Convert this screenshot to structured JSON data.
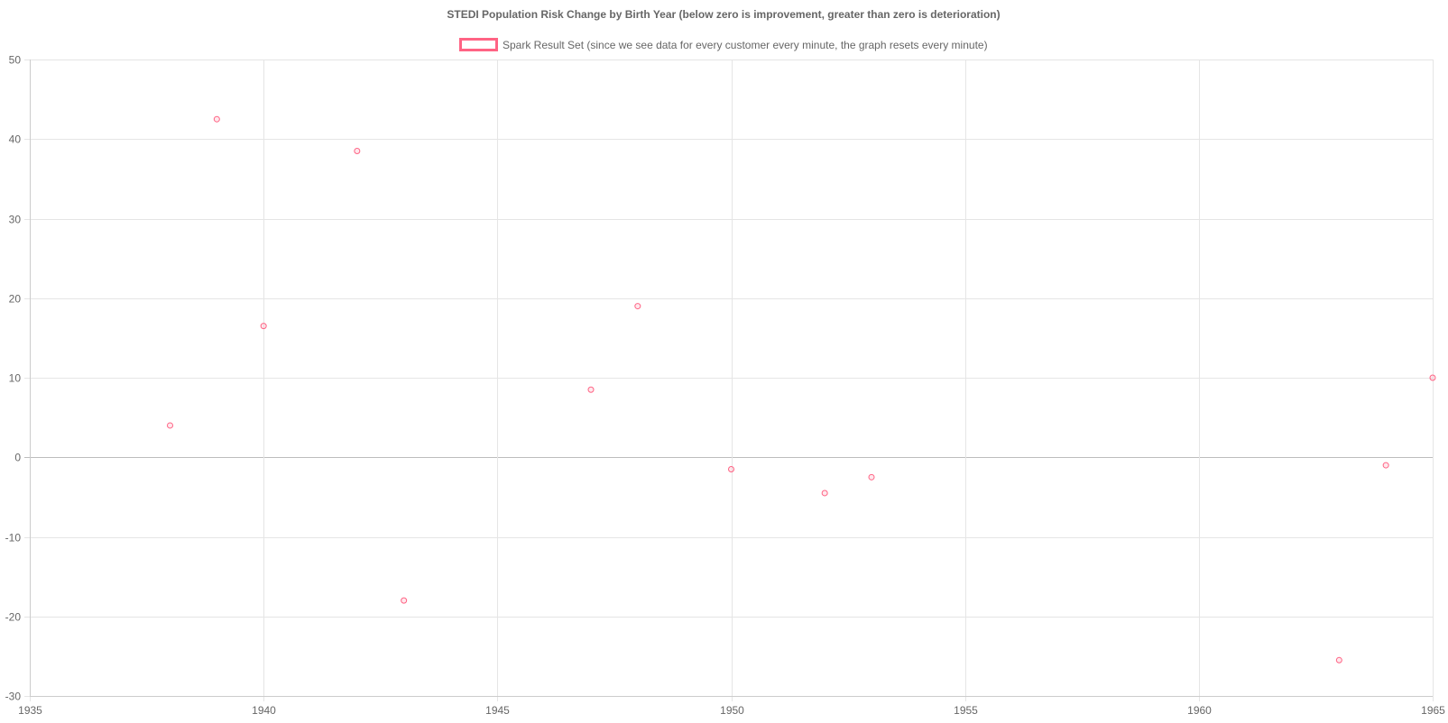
{
  "colors": {
    "point": "#ff6384",
    "grid": "#e5e5e5",
    "zero_line": "#bdbdbd",
    "text": "#666666"
  },
  "chart_data": {
    "type": "scatter",
    "title": "STEDI Population Risk Change by Birth Year (below zero is improvement, greater than zero is deterioration)",
    "xlabel": "",
    "ylabel": "",
    "xlim": [
      1935,
      1965
    ],
    "ylim": [
      -30,
      50
    ],
    "x_ticks": [
      1935,
      1940,
      1945,
      1950,
      1955,
      1960,
      1965
    ],
    "y_ticks": [
      50,
      40,
      30,
      20,
      10,
      0,
      -10,
      -20,
      -30
    ],
    "grid": true,
    "legend_position": "top",
    "series": [
      {
        "name": "Spark Result Set (since we see data for every customer every minute, the graph resets every minute)",
        "color": "#ff6384",
        "points": [
          {
            "x": 1938,
            "y": 4.0
          },
          {
            "x": 1939,
            "y": 42.5
          },
          {
            "x": 1940,
            "y": 16.5
          },
          {
            "x": 1942,
            "y": 38.5
          },
          {
            "x": 1943,
            "y": -18.0
          },
          {
            "x": 1947,
            "y": 8.5
          },
          {
            "x": 1948,
            "y": 19.0
          },
          {
            "x": 1950,
            "y": -1.5
          },
          {
            "x": 1952,
            "y": -4.5
          },
          {
            "x": 1953,
            "y": -2.5
          },
          {
            "x": 1963,
            "y": -25.5
          },
          {
            "x": 1964,
            "y": -1.0
          },
          {
            "x": 1965,
            "y": 10.0
          }
        ]
      }
    ]
  }
}
